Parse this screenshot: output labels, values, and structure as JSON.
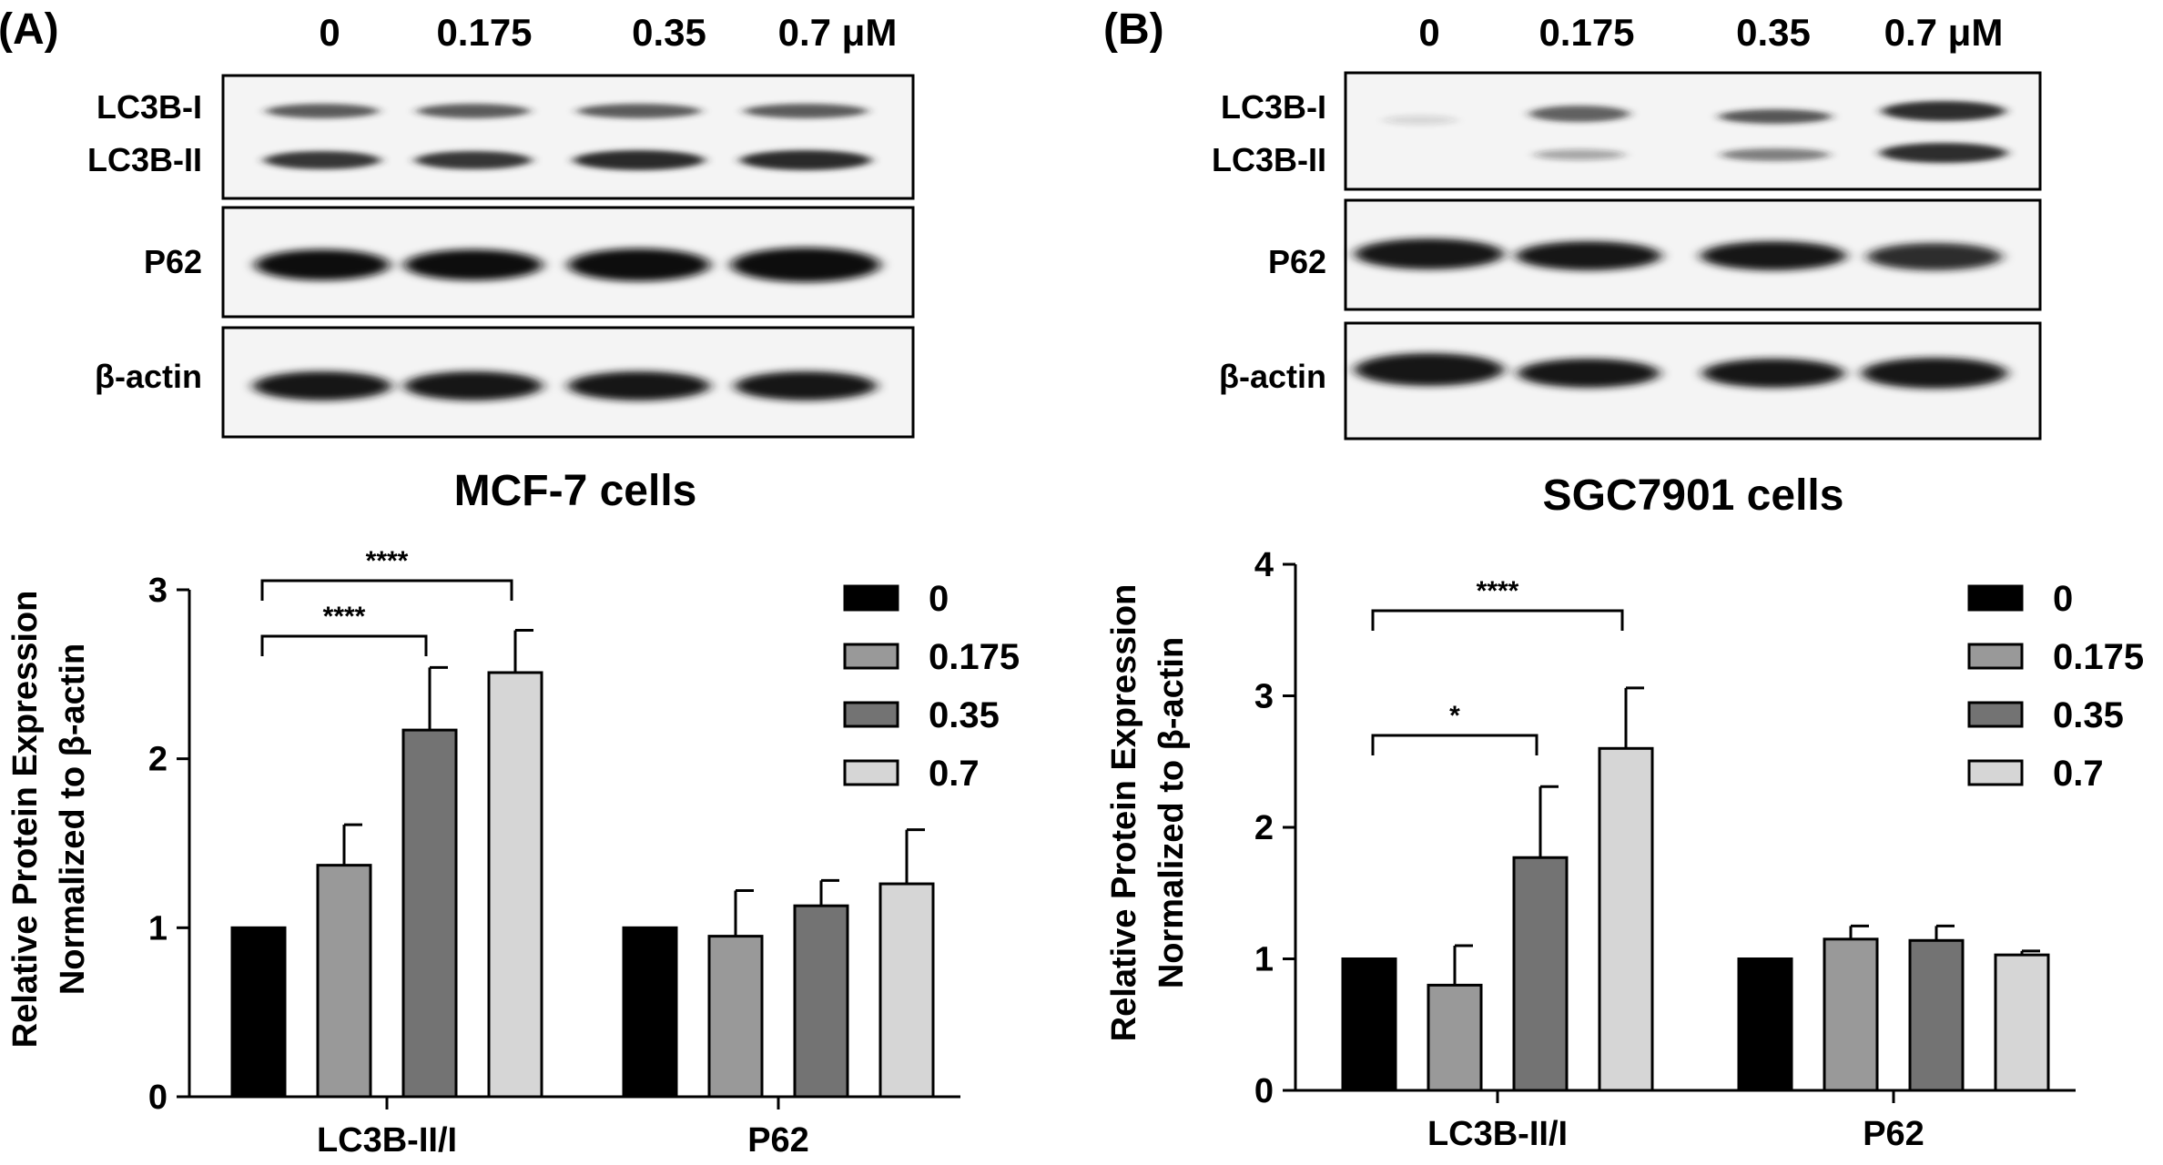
{
  "panels": [
    {
      "id": "A",
      "label": "(A)",
      "concentrations": [
        "0",
        "0.175",
        "0.35",
        "0.7 μM"
      ],
      "blot_labels": [
        "LC3B-I",
        "LC3B-II",
        "P62",
        "β-actin"
      ],
      "cell_line": "MCF-7 cells"
    },
    {
      "id": "B",
      "label": "(B)",
      "concentrations": [
        "0",
        "0.175",
        "0.35",
        "0.7 μM"
      ],
      "blot_labels": [
        "LC3B-I",
        "LC3B-II",
        "P62",
        "β-actin"
      ],
      "cell_line": "SGC7901 cells"
    }
  ],
  "colors": {
    "0": "#000000",
    "0.175": "#999999",
    "0.35": "#737373",
    "0.7": "#d6d6d6"
  },
  "chart_data": [
    {
      "type": "bar",
      "title": "MCF-7 cells",
      "ylabel": [
        "Relative Protein Expression",
        "Normalized to β-actin"
      ],
      "xlabel": "",
      "categories": [
        "LC3B-II/I",
        "P62"
      ],
      "ylim": [
        0,
        3
      ],
      "yticks": [
        "0",
        "1",
        "2",
        "3"
      ],
      "series": [
        {
          "name": "0",
          "values": [
            1.0,
            1.0
          ],
          "errors": [
            0,
            0
          ]
        },
        {
          "name": "0.175",
          "values": [
            1.37,
            0.95
          ],
          "errors": [
            0.24,
            0.27
          ]
        },
        {
          "name": "0.35",
          "values": [
            2.17,
            1.13
          ],
          "errors": [
            0.37,
            0.15
          ]
        },
        {
          "name": "0.7",
          "values": [
            2.51,
            1.26
          ],
          "errors": [
            0.25,
            0.32
          ]
        }
      ],
      "legend": [
        "0",
        "0.175",
        "0.35",
        "0.7"
      ],
      "legend_position": "top-right",
      "significance": [
        {
          "from_series": 0,
          "to_series": 2,
          "category": 0,
          "label": "****"
        },
        {
          "from_series": 0,
          "to_series": 3,
          "category": 0,
          "label": "****"
        }
      ]
    },
    {
      "type": "bar",
      "title": "SGC7901 cells",
      "ylabel": [
        "Relative Protein Expression",
        "Normalized to β-actin"
      ],
      "xlabel": "",
      "categories": [
        "LC3B-II/I",
        "P62"
      ],
      "ylim": [
        0,
        4
      ],
      "yticks": [
        "0",
        "1",
        "2",
        "3",
        "4"
      ],
      "series": [
        {
          "name": "0",
          "values": [
            1.0,
            1.0
          ],
          "errors": [
            0,
            0
          ]
        },
        {
          "name": "0.175",
          "values": [
            0.8,
            1.15
          ],
          "errors": [
            0.3,
            0.1
          ]
        },
        {
          "name": "0.35",
          "values": [
            1.77,
            1.14
          ],
          "errors": [
            0.54,
            0.11
          ]
        },
        {
          "name": "0.7",
          "values": [
            2.6,
            1.03
          ],
          "errors": [
            0.46,
            0.03
          ]
        }
      ],
      "legend": [
        "0",
        "0.175",
        "0.35",
        "0.7"
      ],
      "legend_position": "top-right",
      "significance": [
        {
          "from_series": 0,
          "to_series": 2,
          "category": 0,
          "label": "*"
        },
        {
          "from_series": 0,
          "to_series": 3,
          "category": 0,
          "label": "****"
        }
      ]
    }
  ]
}
